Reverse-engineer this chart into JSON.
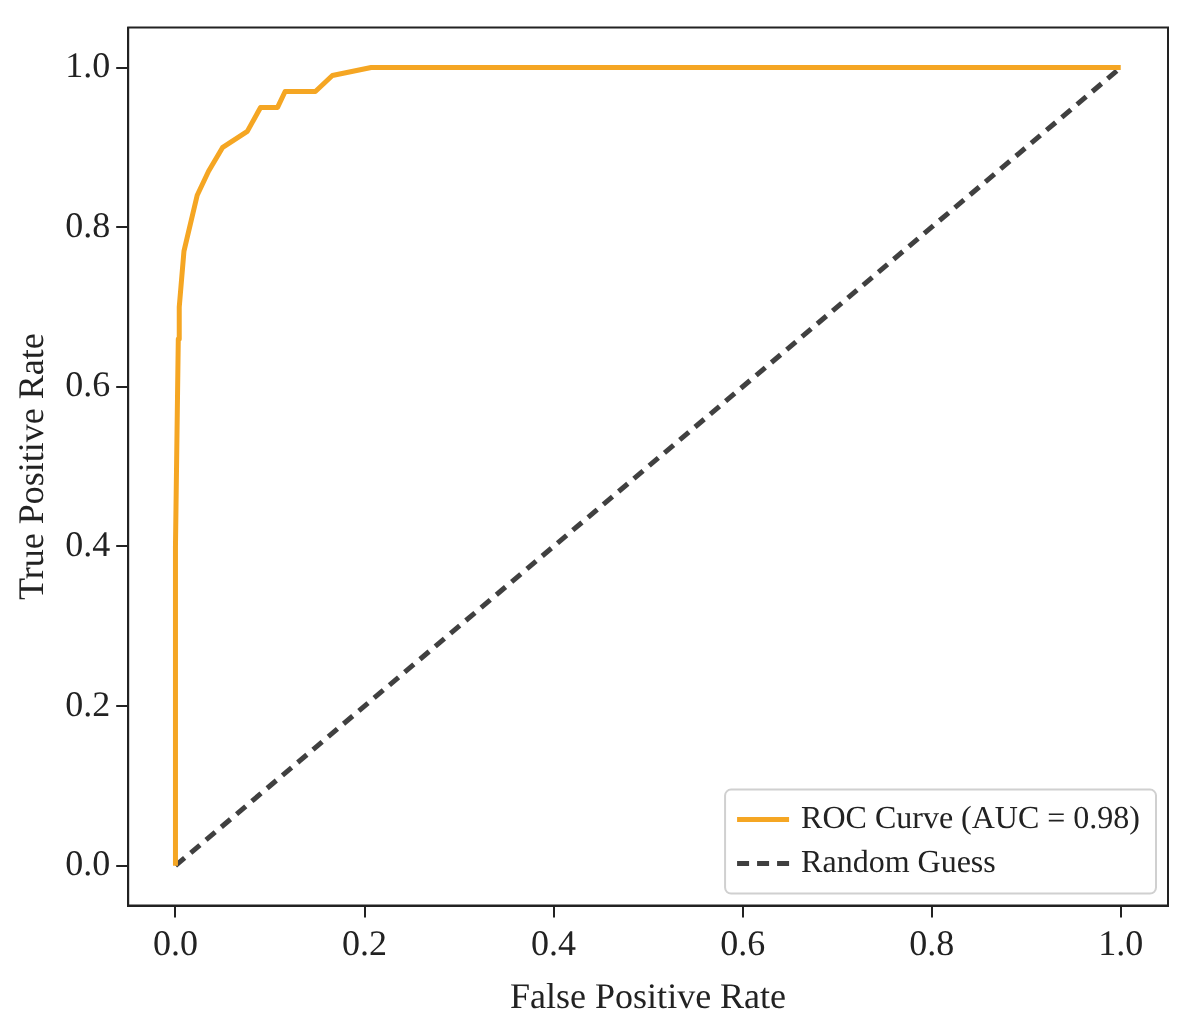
{
  "chart_data": {
    "type": "line",
    "xlabel": "False Positive Rate",
    "ylabel": "True Positive Rate",
    "xlim": [
      -0.05,
      1.05
    ],
    "ylim": [
      -0.05,
      1.05
    ],
    "xticks": [
      {
        "value": 0,
        "label": "0.0"
      },
      0.2,
      0.4,
      0.6,
      0.8,
      {
        "value": 1,
        "label": "1.0"
      }
    ],
    "yticks": [
      {
        "value": 0,
        "label": "0.0"
      },
      0.2,
      0.4,
      0.6,
      0.8,
      {
        "value": 1,
        "label": "1.0"
      }
    ],
    "grid": false,
    "legend": "bottom right",
    "series": [
      {
        "name": "ROC Curve (AUC = 0.98)",
        "color": "#f5a623",
        "line_style": "solid",
        "x": [
          0,
          0,
          0.003,
          0.004,
          0.009,
          0.015,
          0.023,
          0.035,
          0.05,
          0.076,
          0.09,
          0.108,
          0.116,
          0.148,
          0.166,
          0.207,
          0.3,
          1
        ],
        "values": [
          0,
          0.4,
          0.66,
          0.7,
          0.77,
          0.8,
          0.84,
          0.87,
          0.9,
          0.92,
          0.95,
          0.95,
          0.97,
          0.97,
          0.99,
          1,
          1,
          1
        ]
      },
      {
        "name": "Random Guess",
        "color": "#404040",
        "line_style": "dashed",
        "x": [
          0,
          1
        ],
        "values": [
          0,
          1
        ]
      }
    ]
  }
}
